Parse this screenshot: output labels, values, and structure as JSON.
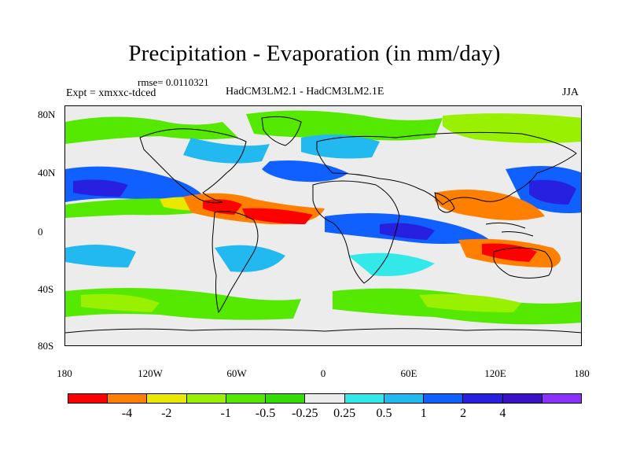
{
  "title": "Precipitation - Evaporation (in mm/day)",
  "rmse_text": "rmse= 0.0110321",
  "expt_text": "Expt = xmxxc-tdced",
  "models_text": "HadCM3LM2.1 - HadCM3LM2.1E",
  "season": "JJA",
  "map": {
    "y_ticks": [
      "80N",
      "40N",
      "0",
      "40S",
      "80S"
    ],
    "x_ticks": [
      "180",
      "120W",
      "60W",
      "0",
      "60E",
      "120E",
      "180"
    ]
  },
  "colorbar": {
    "colors": [
      "#ff0000",
      "#ff8000",
      "#e8e800",
      "#99f000",
      "#55e800",
      "#33dd00",
      "#ececec",
      "#33e8e8",
      "#22b8f0",
      "#1060ff",
      "#2820e0",
      "#3a10c8",
      "#8a30ff"
    ],
    "labels": [
      "-4",
      "-2",
      "-1",
      "-0.5",
      "-0.25",
      "0.25",
      "0.5",
      "1",
      "2",
      "4"
    ]
  }
}
